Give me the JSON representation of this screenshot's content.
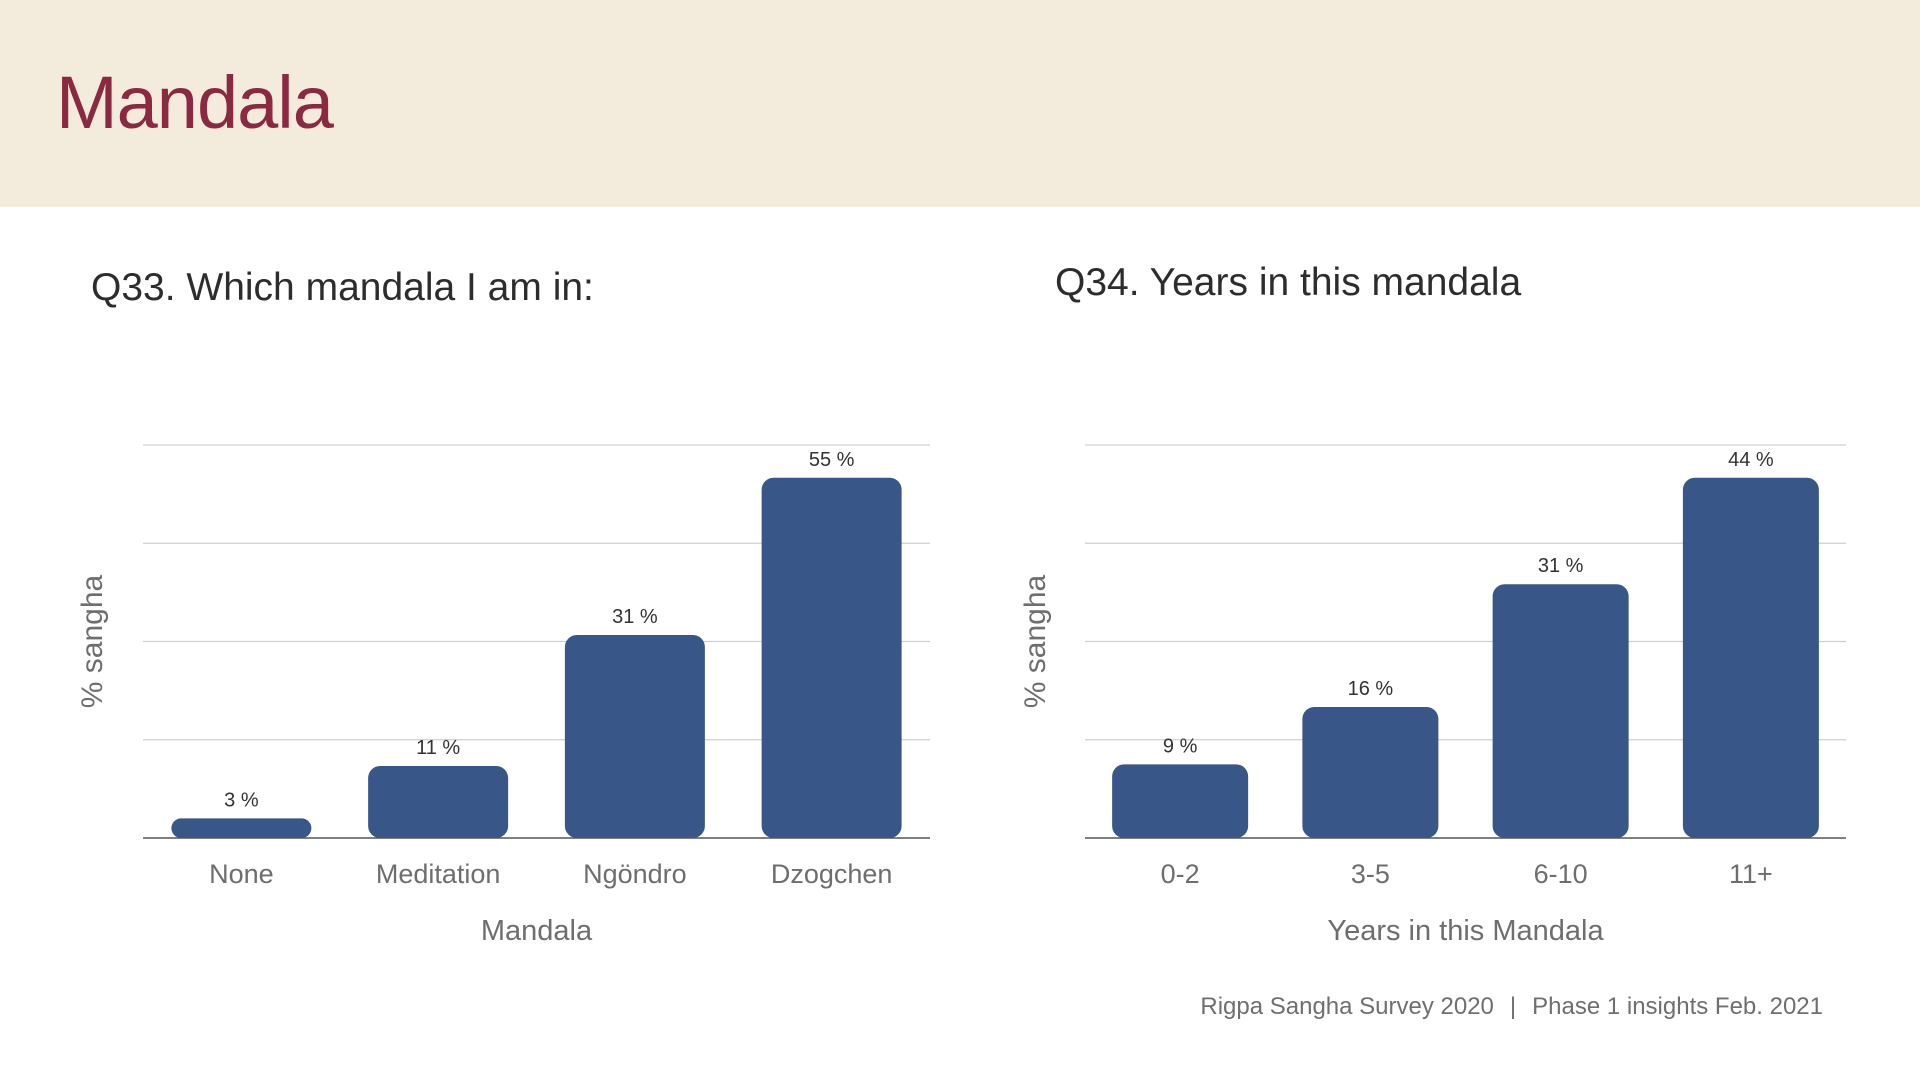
{
  "header": {
    "title": "Mandala"
  },
  "colors": {
    "header_bg": "#f3ecdc",
    "title": "#8b2942",
    "bar": "#385788",
    "grid": "#cfcfcf",
    "axis": "#555555"
  },
  "chart_data": [
    {
      "type": "bar",
      "title": "Q33. Which mandala I am in:",
      "xlabel": "Mandala",
      "ylabel": "% sangha",
      "categories": [
        "None",
        "Meditation",
        "Ngöndro",
        "Dzogchen"
      ],
      "values": [
        3,
        11,
        31,
        55
      ],
      "value_labels": [
        "3 %",
        "11 %",
        "31 %",
        "55 %"
      ],
      "ylim": [
        0,
        60
      ],
      "grid": true
    },
    {
      "type": "bar",
      "title": "Q34. Years in this mandala",
      "xlabel": "Years in this Mandala",
      "ylabel": "% sangha",
      "categories": [
        "0-2",
        "3-5",
        "6-10",
        "11+"
      ],
      "values": [
        9,
        16,
        31,
        44
      ],
      "value_labels": [
        "9 %",
        "16 %",
        "31 %",
        "44 %"
      ],
      "ylim": [
        0,
        48
      ],
      "grid": true
    }
  ],
  "footer": {
    "left": "Rigpa Sangha Survey 2020",
    "separator": "|",
    "right": "Phase 1 insights Feb. 2021"
  }
}
